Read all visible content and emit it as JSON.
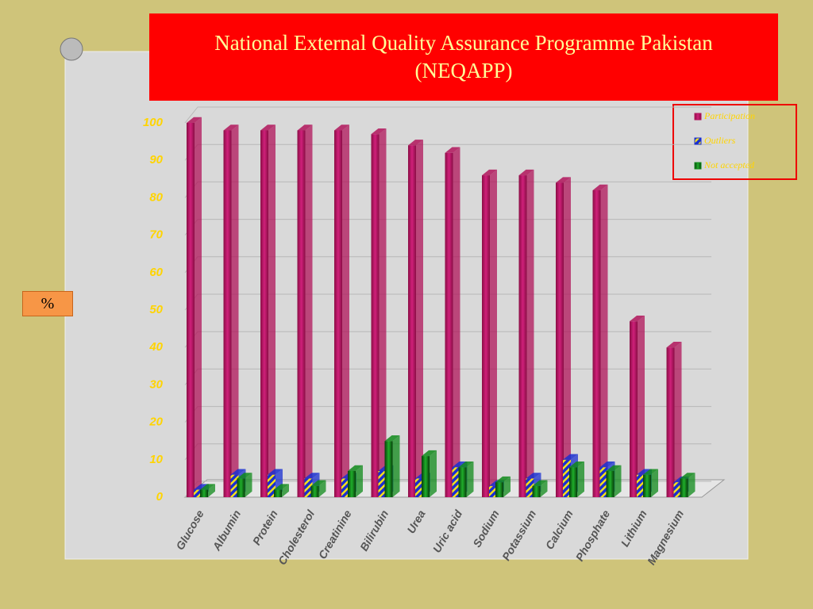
{
  "chart_data": {
    "type": "bar3d",
    "title": "National External Quality Assurance Programme Pakistan (NEQAPP)",
    "ylabel": "%",
    "categories": [
      "Glucose",
      "Albumin",
      "Protein",
      "Cholesterol",
      "Creatinine",
      "Bilirubin",
      "Urea",
      "Uric acid",
      "Sodium",
      "Potassium",
      "Calcium",
      "Phosphate",
      "Lithium",
      "Magnesium"
    ],
    "series": [
      {
        "name": "Participation",
        "color": "#b0145a",
        "values": [
          100,
          98,
          98,
          98,
          98,
          97,
          94,
          92,
          86,
          86,
          84,
          82,
          47,
          40
        ]
      },
      {
        "name": "Outliers",
        "color": "#1a2fd0",
        "values": [
          2,
          6,
          6,
          5,
          5,
          7,
          5,
          8,
          3,
          5,
          10,
          8,
          6,
          4
        ]
      },
      {
        "name": "Not accepted",
        "color": "#0f8a1a",
        "values": [
          2,
          5,
          2,
          3,
          7,
          15,
          11,
          8,
          4,
          3,
          8,
          7,
          6,
          5
        ]
      }
    ],
    "ylim": [
      0,
      100
    ],
    "yticks": [
      0,
      10,
      20,
      30,
      40,
      50,
      60,
      70,
      80,
      90,
      100
    ],
    "grid": true,
    "legend": "top-right"
  }
}
